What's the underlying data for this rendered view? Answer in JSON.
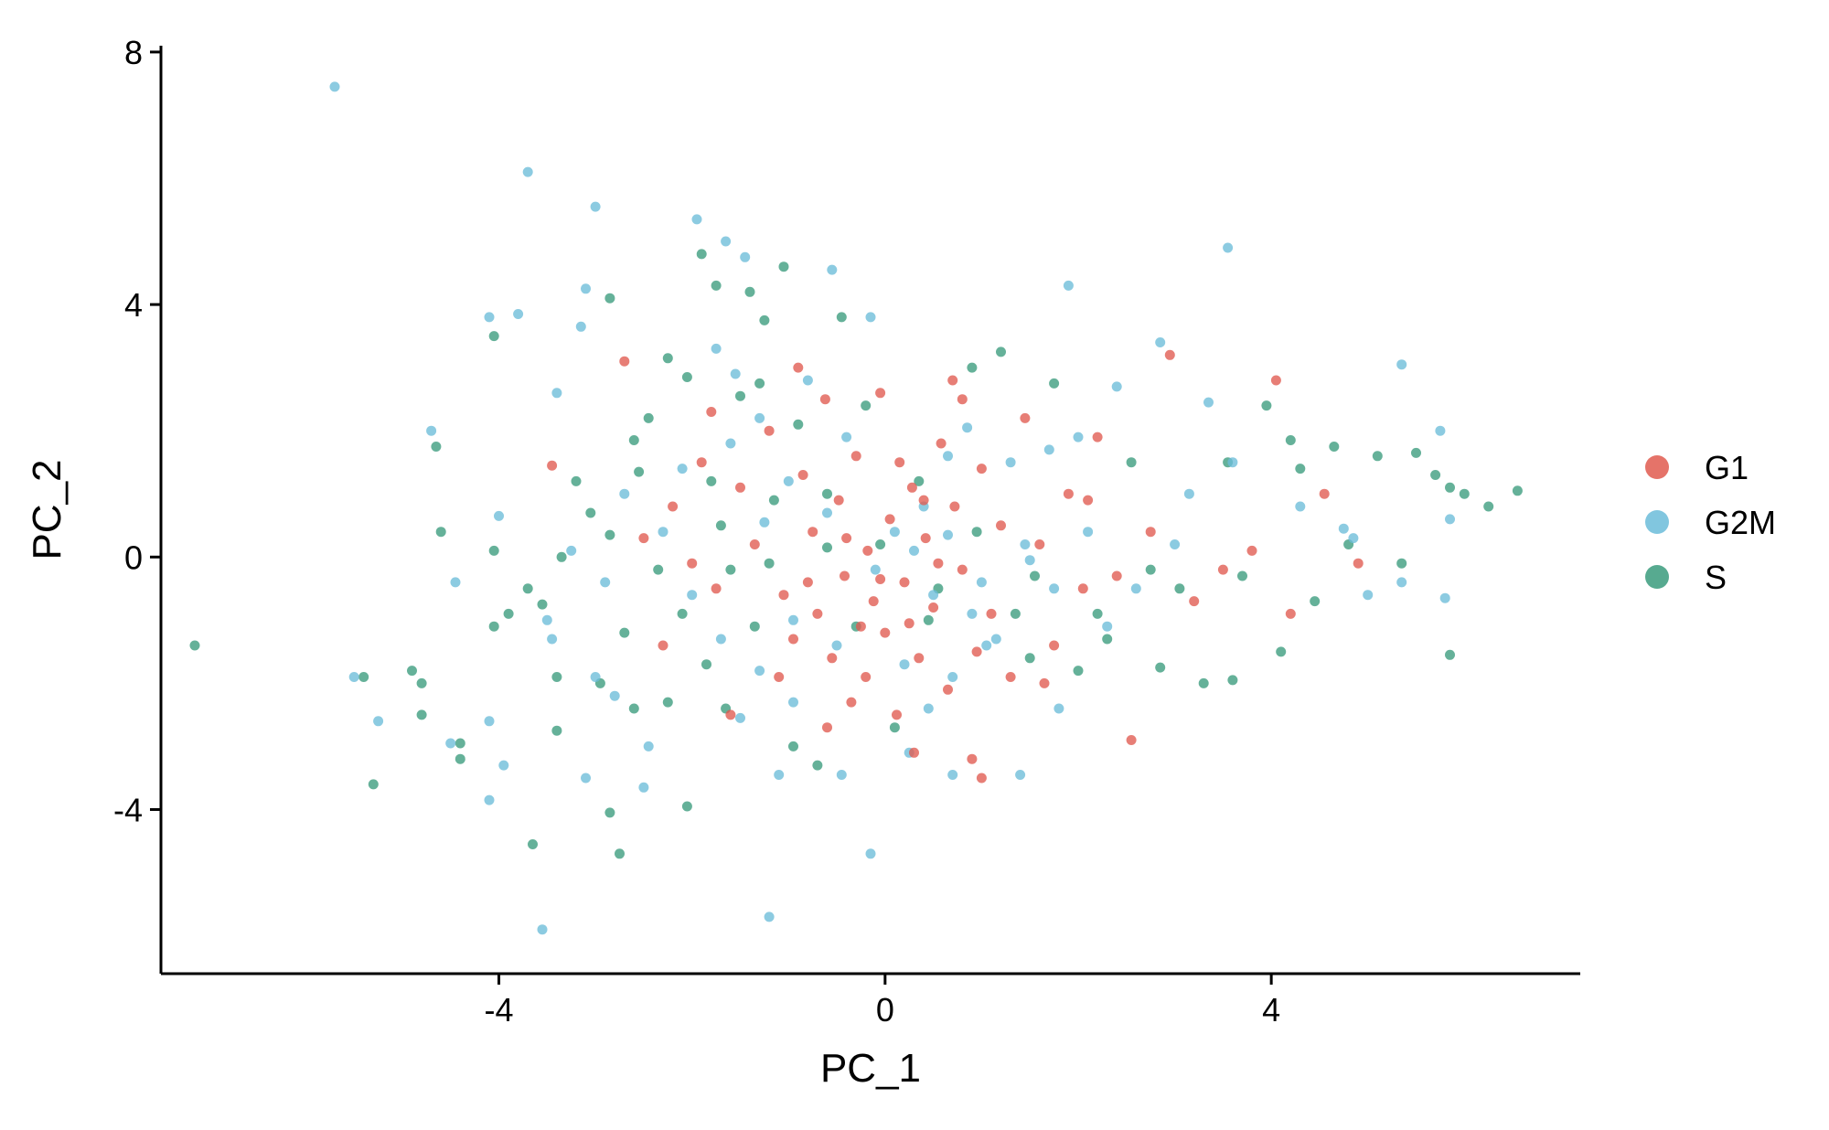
{
  "chart_data": {
    "type": "scatter",
    "xlabel": "PC_1",
    "ylabel": "PC_2",
    "xlim": [
      -7.5,
      7.2
    ],
    "ylim": [
      -6.6,
      8.1
    ],
    "xticks": [
      -4,
      0,
      4
    ],
    "yticks": [
      -4,
      0,
      4,
      8
    ],
    "grid": false,
    "legend_position": "right",
    "series": [
      {
        "name": "G1",
        "color": "#E05A4F",
        "points": [
          [
            -3.45,
            1.45
          ],
          [
            -2.7,
            3.1
          ],
          [
            -2.2,
            0.8
          ],
          [
            -2.0,
            -0.1
          ],
          [
            -1.9,
            1.5
          ],
          [
            -1.75,
            -0.5
          ],
          [
            -1.5,
            1.1
          ],
          [
            -1.35,
            0.2
          ],
          [
            -1.2,
            2.0
          ],
          [
            -1.05,
            -0.6
          ],
          [
            -0.95,
            -1.3
          ],
          [
            -0.85,
            1.3
          ],
          [
            -0.75,
            0.4
          ],
          [
            -0.7,
            -0.9
          ],
          [
            -0.62,
            2.5
          ],
          [
            -0.55,
            -1.6
          ],
          [
            -0.48,
            0.9
          ],
          [
            -0.42,
            -0.3
          ],
          [
            -0.35,
            -2.3
          ],
          [
            -0.3,
            1.6
          ],
          [
            -0.25,
            -1.1
          ],
          [
            -0.18,
            0.1
          ],
          [
            -0.12,
            -0.7
          ],
          [
            -0.05,
            2.6
          ],
          [
            0.0,
            -1.2
          ],
          [
            0.05,
            0.6
          ],
          [
            0.12,
            -2.5
          ],
          [
            0.2,
            -0.4
          ],
          [
            0.28,
            1.1
          ],
          [
            0.35,
            -1.6
          ],
          [
            0.42,
            0.3
          ],
          [
            0.5,
            -0.8
          ],
          [
            0.58,
            1.8
          ],
          [
            0.65,
            -2.1
          ],
          [
            0.72,
            0.8
          ],
          [
            0.8,
            -0.2
          ],
          [
            0.9,
            -3.2
          ],
          [
            1.0,
            1.4
          ],
          [
            1.1,
            -0.9
          ],
          [
            1.2,
            0.5
          ],
          [
            1.3,
            -1.9
          ],
          [
            1.45,
            2.2
          ],
          [
            1.6,
            0.2
          ],
          [
            1.75,
            -1.4
          ],
          [
            1.9,
            1.0
          ],
          [
            2.05,
            -0.5
          ],
          [
            2.2,
            1.9
          ],
          [
            2.4,
            -0.3
          ],
          [
            2.55,
            -2.9
          ],
          [
            2.75,
            0.4
          ],
          [
            2.95,
            3.2
          ],
          [
            3.2,
            -0.7
          ],
          [
            3.5,
            -0.2
          ],
          [
            3.8,
            0.1
          ],
          [
            4.05,
            2.8
          ],
          [
            4.2,
            -0.9
          ],
          [
            4.55,
            1.0
          ],
          [
            4.9,
            -0.1
          ],
          [
            -1.6,
            -2.5
          ],
          [
            -0.6,
            -2.7
          ],
          [
            0.3,
            -3.1
          ],
          [
            1.0,
            -3.5
          ],
          [
            -2.3,
            -1.4
          ],
          [
            -1.8,
            2.3
          ],
          [
            -0.9,
            3.0
          ],
          [
            0.7,
            2.8
          ],
          [
            0.8,
            2.5
          ],
          [
            -2.5,
            0.3
          ],
          [
            0.4,
            0.9
          ],
          [
            -0.2,
            -1.9
          ],
          [
            0.15,
            1.5
          ],
          [
            -1.1,
            -1.9
          ],
          [
            0.55,
            -0.1
          ],
          [
            -0.4,
            0.3
          ],
          [
            0.95,
            -1.5
          ],
          [
            -0.8,
            -0.4
          ],
          [
            1.65,
            -2.0
          ],
          [
            2.1,
            0.9
          ],
          [
            -0.05,
            -0.35
          ],
          [
            0.25,
            -1.05
          ]
        ]
      },
      {
        "name": "G2M",
        "color": "#6BBCD9",
        "points": [
          [
            -5.7,
            7.45
          ],
          [
            -3.7,
            6.1
          ],
          [
            -3.0,
            5.55
          ],
          [
            -1.95,
            5.35
          ],
          [
            -1.65,
            5.0
          ],
          [
            -1.45,
            4.75
          ],
          [
            -0.55,
            4.55
          ],
          [
            -0.15,
            3.8
          ],
          [
            1.9,
            4.3
          ],
          [
            3.55,
            4.9
          ],
          [
            -4.1,
            3.8
          ],
          [
            -3.8,
            3.85
          ],
          [
            -3.1,
            4.25
          ],
          [
            -3.15,
            3.65
          ],
          [
            -1.75,
            3.3
          ],
          [
            -1.55,
            2.9
          ],
          [
            -0.8,
            2.8
          ],
          [
            2.4,
            2.7
          ],
          [
            2.85,
            3.4
          ],
          [
            5.35,
            3.05
          ],
          [
            -4.7,
            2.0
          ],
          [
            -3.4,
            2.6
          ],
          [
            -4.0,
            0.65
          ],
          [
            -4.45,
            -0.4
          ],
          [
            -3.5,
            -1.0
          ],
          [
            -3.45,
            -1.3
          ],
          [
            -5.5,
            -1.9
          ],
          [
            -5.25,
            -2.6
          ],
          [
            -4.5,
            -2.95
          ],
          [
            -4.1,
            -2.6
          ],
          [
            -3.95,
            -3.3
          ],
          [
            -4.1,
            -3.85
          ],
          [
            -3.0,
            -1.9
          ],
          [
            -2.8,
            -2.2
          ],
          [
            -3.1,
            -3.5
          ],
          [
            -2.45,
            -3.0
          ],
          [
            -2.5,
            -3.65
          ],
          [
            -3.55,
            -5.9
          ],
          [
            -1.2,
            -5.7
          ],
          [
            -0.15,
            -4.7
          ],
          [
            -1.1,
            -3.45
          ],
          [
            -0.45,
            -3.45
          ],
          [
            0.25,
            -3.1
          ],
          [
            0.7,
            -3.45
          ],
          [
            1.4,
            -3.45
          ],
          [
            0.45,
            -2.4
          ],
          [
            -0.95,
            -2.3
          ],
          [
            1.8,
            -2.4
          ],
          [
            5.35,
            -0.4
          ],
          [
            5.8,
            -0.65
          ],
          [
            5.75,
            2.0
          ],
          [
            5.85,
            0.6
          ],
          [
            4.75,
            0.45
          ],
          [
            3.35,
            2.45
          ],
          [
            2.0,
            1.9
          ],
          [
            1.7,
            1.7
          ],
          [
            1.3,
            1.5
          ],
          [
            0.65,
            1.6
          ],
          [
            0.4,
            0.8
          ],
          [
            0.1,
            0.4
          ],
          [
            -0.1,
            -0.2
          ],
          [
            0.5,
            -0.6
          ],
          [
            0.9,
            -0.9
          ],
          [
            1.15,
            -1.3
          ],
          [
            1.45,
            0.2
          ],
          [
            1.75,
            -0.5
          ],
          [
            2.1,
            0.4
          ],
          [
            2.3,
            -1.1
          ],
          [
            2.6,
            -0.5
          ],
          [
            3.0,
            0.2
          ],
          [
            3.15,
            1.0
          ],
          [
            3.6,
            1.5
          ],
          [
            4.3,
            0.8
          ],
          [
            4.85,
            0.3
          ],
          [
            5.0,
            -0.6
          ],
          [
            -2.1,
            1.4
          ],
          [
            -1.6,
            1.8
          ],
          [
            -1.3,
            2.2
          ],
          [
            -1.0,
            1.2
          ],
          [
            -0.6,
            0.7
          ],
          [
            -2.7,
            1.0
          ],
          [
            -2.3,
            0.4
          ],
          [
            -2.0,
            -0.6
          ],
          [
            -1.7,
            -1.3
          ],
          [
            -1.3,
            -1.8
          ],
          [
            -0.95,
            -1.0
          ],
          [
            -0.5,
            -1.4
          ],
          [
            0.2,
            -1.7
          ],
          [
            0.7,
            -1.9
          ],
          [
            1.05,
            -1.4
          ],
          [
            -2.9,
            -0.4
          ],
          [
            -3.25,
            0.1
          ],
          [
            -1.5,
            -2.55
          ],
          [
            0.85,
            2.05
          ],
          [
            -0.4,
            1.9
          ],
          [
            -1.25,
            0.55
          ],
          [
            0.3,
            0.1
          ],
          [
            0.65,
            0.35
          ],
          [
            1.0,
            -0.4
          ],
          [
            1.5,
            -0.05
          ]
        ]
      },
      {
        "name": "S",
        "color": "#3A9B7C",
        "points": [
          [
            -7.15,
            -1.4
          ],
          [
            -5.4,
            -1.9
          ],
          [
            -5.3,
            -3.6
          ],
          [
            -4.9,
            -1.8
          ],
          [
            -4.8,
            -2.0
          ],
          [
            -4.8,
            -2.5
          ],
          [
            -4.4,
            -2.95
          ],
          [
            -4.4,
            -3.2
          ],
          [
            -4.65,
            1.75
          ],
          [
            -4.6,
            0.4
          ],
          [
            -4.05,
            3.5
          ],
          [
            -4.05,
            0.1
          ],
          [
            -4.05,
            -1.1
          ],
          [
            -3.9,
            -0.9
          ],
          [
            -3.7,
            -0.5
          ],
          [
            -3.65,
            -4.55
          ],
          [
            -3.55,
            -0.75
          ],
          [
            -3.4,
            -1.9
          ],
          [
            -3.4,
            -2.75
          ],
          [
            -3.35,
            0.0
          ],
          [
            -3.2,
            1.2
          ],
          [
            -3.05,
            0.7
          ],
          [
            -2.85,
            4.1
          ],
          [
            -2.85,
            0.35
          ],
          [
            -2.7,
            -1.2
          ],
          [
            -2.75,
            -4.7
          ],
          [
            -2.6,
            -2.4
          ],
          [
            -2.55,
            1.35
          ],
          [
            -2.45,
            2.2
          ],
          [
            -2.35,
            -0.2
          ],
          [
            -2.25,
            3.15
          ],
          [
            -2.1,
            -0.9
          ],
          [
            -2.05,
            2.85
          ],
          [
            -1.9,
            4.8
          ],
          [
            -1.85,
            -1.7
          ],
          [
            -1.8,
            1.2
          ],
          [
            -1.75,
            4.3
          ],
          [
            -1.7,
            0.5
          ],
          [
            -1.6,
            -0.2
          ],
          [
            -1.5,
            2.55
          ],
          [
            -1.4,
            4.2
          ],
          [
            -1.35,
            -1.1
          ],
          [
            -1.25,
            3.75
          ],
          [
            -1.15,
            0.9
          ],
          [
            -1.05,
            4.6
          ],
          [
            -0.95,
            -3.0
          ],
          [
            -0.9,
            2.1
          ],
          [
            -0.7,
            -3.3
          ],
          [
            -0.6,
            0.15
          ],
          [
            -0.45,
            3.8
          ],
          [
            -0.3,
            -1.1
          ],
          [
            -0.2,
            2.4
          ],
          [
            0.1,
            -2.7
          ],
          [
            0.35,
            1.2
          ],
          [
            0.55,
            -0.5
          ],
          [
            0.9,
            3.0
          ],
          [
            1.2,
            3.25
          ],
          [
            1.35,
            -0.9
          ],
          [
            1.5,
            -1.6
          ],
          [
            1.75,
            2.75
          ],
          [
            2.0,
            -1.8
          ],
          [
            2.3,
            -1.3
          ],
          [
            2.55,
            1.5
          ],
          [
            2.75,
            -0.2
          ],
          [
            3.05,
            -0.5
          ],
          [
            3.3,
            -2.0
          ],
          [
            3.55,
            1.5
          ],
          [
            3.7,
            -0.3
          ],
          [
            3.95,
            2.4
          ],
          [
            4.1,
            -1.5
          ],
          [
            4.3,
            1.4
          ],
          [
            4.45,
            -0.7
          ],
          [
            4.65,
            1.75
          ],
          [
            4.8,
            0.2
          ],
          [
            5.1,
            1.6
          ],
          [
            5.35,
            -0.1
          ],
          [
            5.5,
            1.65
          ],
          [
            5.7,
            1.3
          ],
          [
            5.85,
            1.1
          ],
          [
            6.0,
            1.0
          ],
          [
            6.25,
            0.8
          ],
          [
            6.55,
            1.05
          ],
          [
            5.85,
            -1.55
          ],
          [
            4.2,
            1.85
          ],
          [
            3.6,
            -1.95
          ],
          [
            2.85,
            -1.75
          ],
          [
            2.2,
            -0.9
          ],
          [
            1.55,
            -0.3
          ],
          [
            0.95,
            0.4
          ],
          [
            0.45,
            -1.0
          ],
          [
            -0.05,
            0.2
          ],
          [
            -0.6,
            1.0
          ],
          [
            -1.2,
            -0.1
          ],
          [
            -1.65,
            -2.4
          ],
          [
            -2.25,
            -2.3
          ],
          [
            -2.95,
            -2.0
          ],
          [
            -2.85,
            -4.05
          ],
          [
            -2.05,
            -3.95
          ],
          [
            -1.3,
            2.75
          ],
          [
            -2.6,
            1.85
          ]
        ]
      }
    ]
  }
}
